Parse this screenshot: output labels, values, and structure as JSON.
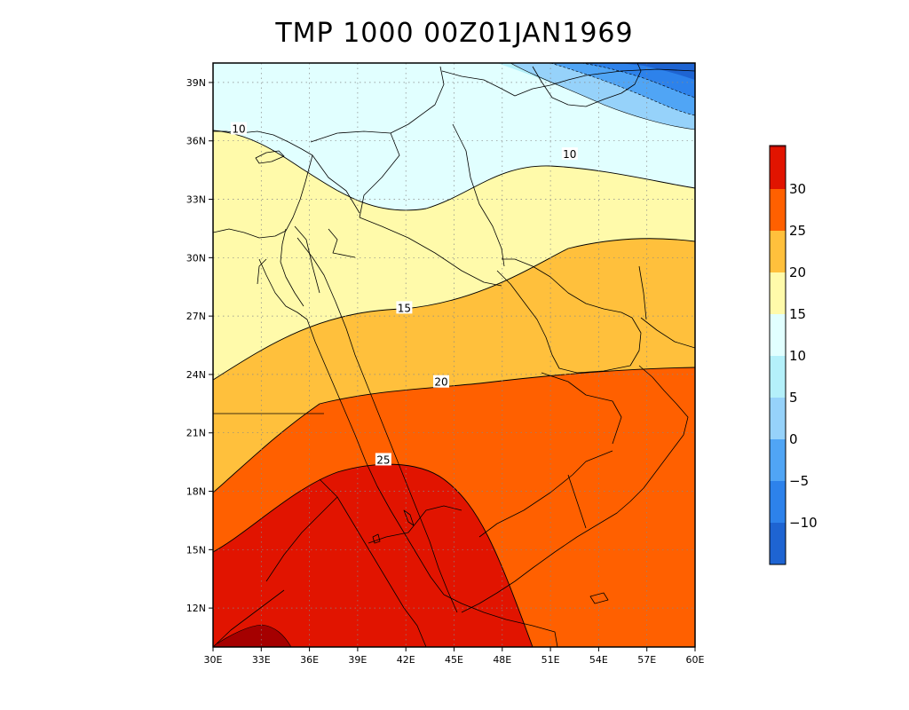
{
  "title": "TMP 1000 00Z01JAN1969",
  "colors": {
    "lt_m10": "#1e64d2",
    "m10_m5": "#2d82eb",
    "m5_0": "#50a5f5",
    "0_5": "#96d2fa",
    "5_10": "#b4f0fa",
    "10_15": "#e1ffff",
    "15_20": "#fffaaa",
    "20_25": "#ffc03c",
    "25_30": "#ff6000",
    "30_35": "#e11400",
    "gt_35": "#a50000"
  },
  "map": {
    "x_ticks": [
      "30E",
      "33E",
      "36E",
      "39E",
      "42E",
      "45E",
      "48E",
      "51E",
      "54E",
      "57E",
      "60E"
    ],
    "y_ticks": [
      "12N",
      "15N",
      "18N",
      "21N",
      "24N",
      "27N",
      "30N",
      "33N",
      "36N",
      "39N"
    ],
    "contour_labels": [
      {
        "text": "10",
        "lon": 31.6,
        "lat": 36.6
      },
      {
        "text": "10",
        "lon": 52.2,
        "lat": 35.3
      },
      {
        "text": "15",
        "lon": 41.9,
        "lat": 27.4
      },
      {
        "text": "20",
        "lon": 44.2,
        "lat": 23.6
      },
      {
        "text": "25",
        "lon": 40.6,
        "lat": 19.6
      }
    ]
  },
  "colorbar": {
    "labels": [
      "30",
      "25",
      "20",
      "15",
      "10",
      "5",
      "0",
      "−5",
      "−10"
    ]
  }
}
